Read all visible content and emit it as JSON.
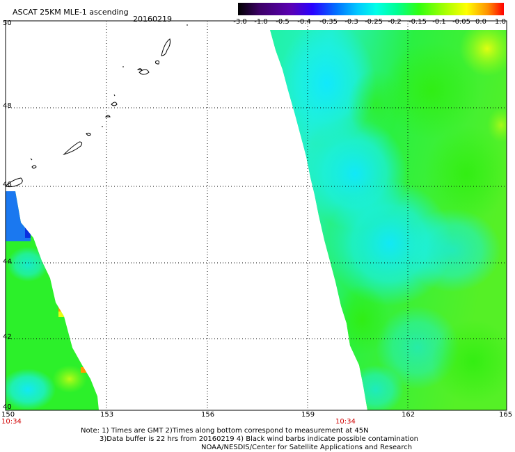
{
  "header": {
    "title": "ASCAT 25KM MLE-1 ascending",
    "date": "20160219"
  },
  "colorbar": {
    "labels": [
      "-3.0",
      "-1.0",
      "-0.5",
      "-0.4",
      "-0.35",
      "-0.3",
      "-0.25",
      "-0.2",
      "-0.15",
      "-0.1",
      "-0.05",
      "0.0",
      "1.0"
    ],
    "colors": [
      "#000000",
      "#3c0066",
      "#5a00b4",
      "#3000ff",
      "#0064ff",
      "#00a0ff",
      "#00e8ff",
      "#00ffc0",
      "#30ff00",
      "#9cff00",
      "#ffff00",
      "#ff9800",
      "#ff0000"
    ]
  },
  "map": {
    "lon_labels": [
      "150",
      "153",
      "156",
      "159",
      "162",
      "165"
    ],
    "lat_labels": [
      "50",
      "48",
      "46",
      "44",
      "42",
      "40"
    ],
    "times": [
      "10:34",
      "10:34"
    ]
  },
  "note": {
    "line1": "Note: 1) Times are GMT 2)Times along bottom correspond to measurement at 45N",
    "line2": "3)Data buffer is 22 hrs from 20160219 4) Black wind barbs indicate possible contamination",
    "line3": "NOAA/NESDIS/Center for Satellite Applications and Research"
  },
  "palette": {
    "green": "#22f01a",
    "cyan": "#1af0e6",
    "blue": "#1a78f0"
  }
}
